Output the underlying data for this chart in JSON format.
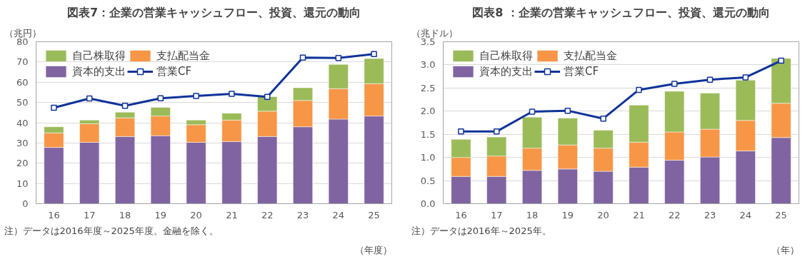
{
  "chart_data": [
    {
      "type": "bar",
      "title": "図表7：企業の営業キャッシュフロー、投資、還元の動向",
      "ylabel": "（兆円）",
      "xlabel": "（年度）",
      "annotations": [
        "注）データは2016年度～2025年度。金融を除く。"
      ],
      "categories": [
        "16",
        "17",
        "18",
        "19",
        "20",
        "21",
        "22",
        "23",
        "24",
        "25"
      ],
      "stacked": true,
      "series": [
        {
          "name": "資本的支出",
          "color": "#8064a2",
          "values": [
            27.8,
            30.3,
            33.2,
            33.6,
            30.3,
            30.7,
            33.2,
            38.0,
            41.8,
            43.3
          ]
        },
        {
          "name": "支払配当金",
          "color": "#f79646",
          "values": [
            7.2,
            9.2,
            9.2,
            9.7,
            8.7,
            10.6,
            12.5,
            13.0,
            15.0,
            16.0
          ]
        },
        {
          "name": "自己株取得",
          "color": "#9bbb59",
          "values": [
            3.0,
            1.8,
            2.8,
            4.3,
            2.3,
            3.4,
            7.2,
            6.3,
            12.0,
            12.4
          ]
        },
        {
          "name": "営業CF",
          "type": "line",
          "color": "#0f3399",
          "marker": "square",
          "values": [
            47.4,
            52.0,
            48.4,
            52.1,
            53.2,
            54.3,
            52.8,
            72.2,
            72.0,
            73.9
          ]
        }
      ],
      "ylim": [
        0,
        80
      ],
      "yticks": [
        0,
        10,
        20,
        30,
        40,
        50,
        60,
        70,
        80
      ],
      "grid": "y",
      "legend": "top left"
    },
    {
      "type": "bar",
      "title": "図表8 ：企業の営業キャッシュフロー、投資、還元の動向",
      "ylabel": "（兆ドル）",
      "xlabel": "（年）",
      "annotations": [
        "注）データは2016年～2025年。"
      ],
      "categories": [
        "16",
        "17",
        "18",
        "19",
        "20",
        "21",
        "22",
        "23",
        "24",
        "25"
      ],
      "stacked": true,
      "series": [
        {
          "name": "資本的支出",
          "color": "#8064a2",
          "values": [
            0.59,
            0.59,
            0.72,
            0.75,
            0.7,
            0.79,
            0.94,
            1.01,
            1.14,
            1.43
          ]
        },
        {
          "name": "支払配当金",
          "color": "#f79646",
          "values": [
            0.41,
            0.44,
            0.48,
            0.52,
            0.5,
            0.54,
            0.61,
            0.6,
            0.66,
            0.74
          ]
        },
        {
          "name": "自己株取得",
          "color": "#9bbb59",
          "values": [
            0.39,
            0.41,
            0.67,
            0.58,
            0.39,
            0.8,
            0.88,
            0.78,
            0.87,
            0.97
          ]
        },
        {
          "name": "営業CF",
          "type": "line",
          "color": "#0f3399",
          "marker": "square",
          "values": [
            1.56,
            1.56,
            1.99,
            2.01,
            1.84,
            2.46,
            2.59,
            2.68,
            2.73,
            3.09
          ]
        }
      ],
      "ylim": [
        0,
        3.5
      ],
      "yticks": [
        {
          "value": 0,
          "label": "0.0"
        },
        {
          "value": 0.5,
          "label": "0.5"
        },
        {
          "value": 1,
          "label": "1.0"
        },
        {
          "value": 1.5,
          "label": "1.5"
        },
        {
          "value": 2,
          "label": "2.0"
        },
        {
          "value": 2.5,
          "label": "2.5"
        },
        {
          "value": 3,
          "label": "3.0"
        },
        {
          "value": 3.5,
          "label": "3.5"
        }
      ],
      "grid": "y",
      "legend": "top left"
    }
  ]
}
